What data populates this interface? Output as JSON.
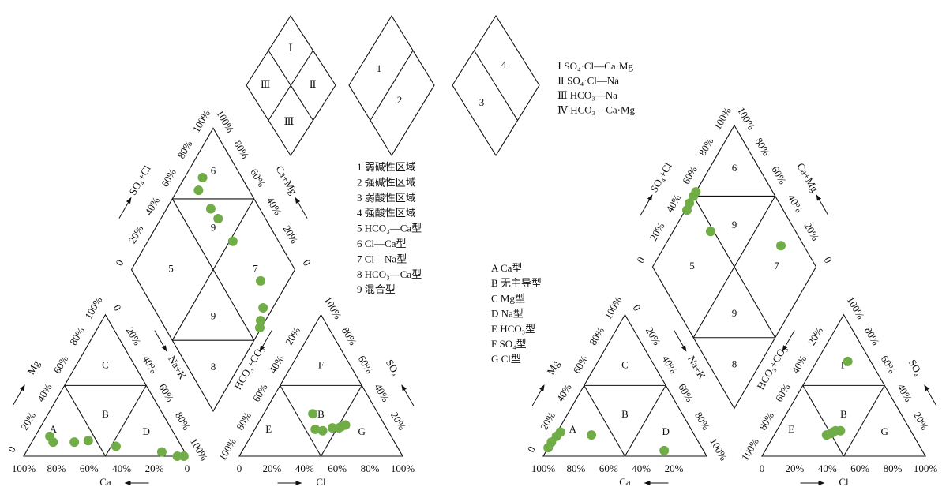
{
  "key_diamonds": [
    {
      "labels": [
        "Ⅰ",
        "Ⅲ",
        "Ⅱ",
        "Ⅲ"
      ]
    },
    {
      "labels": [
        "1",
        "2"
      ]
    },
    {
      "labels": [
        "4",
        "3"
      ]
    }
  ],
  "type_legend": [
    "Ⅰ SO₄·Cl—Ca·Mg",
    "Ⅱ SO₄·Cl—Na",
    "Ⅲ HCO₃—Na",
    "Ⅳ HCO₃—Ca·Mg"
  ],
  "zone_legend": [
    "1 弱碱性区域",
    "2 强碱性区域",
    "3 弱酸性区域",
    "4 强酸性区域",
    "5 HCO₃—Ca型",
    "6 Cl—Ca型",
    "7 Cl—Na型",
    "8 HCO₃—Ca型",
    "9 混合型"
  ],
  "class_legend": [
    "A Ca型",
    "B 无主导型",
    "C Mg型",
    "D Na型",
    "E HCO₃型",
    "F SO₄型",
    "G Cl型"
  ],
  "piper": [
    {
      "point_color": "#70ad47",
      "cation": {
        "zones": [
          "A",
          "B",
          "C",
          "D"
        ],
        "axes": {
          "ca": {
            "title": "Ca",
            "ticks": [
              {
                "value": 100,
                "label": "100%"
              },
              {
                "value": 80,
                "label": "80%"
              },
              {
                "value": 60,
                "label": "60%"
              },
              {
                "value": 40,
                "label": "40%"
              },
              {
                "value": 20,
                "label": "20%"
              },
              0
            ]
          },
          "mg": {
            "title": "Mg",
            "ticks": [
              0,
              {
                "value": 20,
                "label": "20%"
              },
              {
                "value": 40,
                "label": "40%"
              },
              {
                "value": 60,
                "label": "60%"
              },
              {
                "value": 80,
                "label": "80%"
              },
              {
                "value": 100,
                "label": "100%"
              }
            ]
          },
          "na": {
            "title": "Na+K",
            "ticks": [
              0,
              {
                "value": 20,
                "label": "20%"
              },
              {
                "value": 40,
                "label": "40%"
              },
              {
                "value": 60,
                "label": "60%"
              },
              {
                "value": 80,
                "label": "80%"
              },
              {
                "value": 100,
                "label": "100%"
              }
            ]
          }
        },
        "points": {
          "ca": [
            77,
            77,
            64,
            55,
            40,
            14,
            6,
            2
          ],
          "mg": [
            14,
            10,
            10,
            11,
            7,
            3,
            0,
            0
          ]
        }
      },
      "anion": {
        "zones": [
          "E",
          "B",
          "F",
          "G"
        ],
        "axes": {
          "cl": {
            "title": "Cl",
            "ticks": [
              0,
              {
                "value": 20,
                "label": "20%"
              },
              {
                "value": 40,
                "label": "40%"
              },
              {
                "value": 60,
                "label": "60%"
              },
              {
                "value": 80,
                "label": "80%"
              },
              {
                "value": 100,
                "label": "100%"
              }
            ]
          },
          "hco3": {
            "title": "HCO₃+CO₃",
            "ticks": [
              {
                "value": 20,
                "label": "20%"
              },
              {
                "value": 40,
                "label": "40%"
              },
              {
                "value": 60,
                "label": "60%"
              },
              {
                "value": 80,
                "label": "80%"
              },
              {
                "value": 100,
                "label": "100%"
              }
            ]
          },
          "so4": {
            "title": "SO₄",
            "ticks": [
              {
                "value": 20,
                "label": "20%"
              },
              {
                "value": 40,
                "label": "40%"
              },
              {
                "value": 60,
                "label": "60%"
              },
              {
                "value": 80,
                "label": "80%"
              },
              {
                "value": 100,
                "label": "100%"
              }
            ]
          }
        },
        "points": {
          "cl": [
            30,
            37,
            42,
            47,
            51,
            52,
            54
          ],
          "so4": [
            30,
            19,
            18,
            20,
            20,
            21,
            22
          ]
        }
      },
      "diamond": {
        "zones": [
          "6",
          "9",
          "5",
          "7",
          "9",
          "8"
        ],
        "axes": {
          "so4cl": {
            "title": "SO₄+Cl",
            "ticks": [
              0,
              {
                "value": 20,
                "label": "20%"
              },
              {
                "value": 40,
                "label": "40%"
              },
              {
                "value": 60,
                "label": "60%"
              },
              {
                "value": 80,
                "label": "80%"
              },
              {
                "value": 100,
                "label": "100%"
              }
            ]
          },
          "camg": {
            "title": "Ca+Mg",
            "ticks": [
              0,
              {
                "value": 20,
                "label": "20%"
              },
              {
                "value": 40,
                "label": "40%"
              },
              {
                "value": 60,
                "label": "60%"
              },
              {
                "value": 80,
                "label": "80%"
              },
              {
                "value": 100,
                "label": "100%"
              }
            ]
          }
        },
        "points": {
          "camg": [
            89,
            87,
            73,
            65,
            48,
            17,
            6,
            3,
            1
          ],
          "so4cl": [
            76,
            69,
            70,
            71,
            72,
            75,
            67,
            61,
            58
          ]
        }
      }
    },
    {
      "point_color": "#70ad47",
      "cation": {
        "zones": [
          "A",
          "B",
          "C",
          "D"
        ],
        "axes": {
          "ca": {
            "title": "Ca",
            "ticks": [
              {
                "value": 100,
                "label": "100%"
              },
              {
                "value": 80,
                "label": "80%"
              },
              {
                "value": 60,
                "label": "60%"
              },
              {
                "value": 40,
                "label": "40%"
              },
              {
                "value": 20,
                "label": "20%"
              }
            ]
          },
          "mg": {
            "title": "Mg",
            "ticks": [
              0,
              {
                "value": 20,
                "label": "20%"
              },
              {
                "value": 40,
                "label": "40%"
              },
              {
                "value": 60,
                "label": "60%"
              },
              {
                "value": 80,
                "label": "80%"
              },
              {
                "value": 100,
                "label": "100%"
              }
            ]
          },
          "na": {
            "title": "Na+K",
            "ticks": [
              0,
              {
                "value": 20,
                "label": "20%"
              },
              {
                "value": 40,
                "label": "40%"
              },
              {
                "value": 60,
                "label": "60%"
              },
              {
                "value": 80,
                "label": "80%"
              },
              {
                "value": 100,
                "label": "100%"
              }
            ]
          }
        },
        "points": {
          "ca": [
            94,
            90,
            85,
            81,
            63,
            24
          ],
          "mg": [
            6,
            10,
            14,
            17,
            15,
            4
          ]
        }
      },
      "anion": {
        "zones": [
          "E",
          "B",
          "F",
          "G"
        ],
        "axes": {
          "cl": {
            "title": "Cl",
            "ticks": [
              0,
              {
                "value": 20,
                "label": "20%"
              },
              {
                "value": 40,
                "label": "40%"
              },
              {
                "value": 60,
                "label": "60%"
              },
              {
                "value": 80,
                "label": "80%"
              },
              {
                "value": 100,
                "label": "100%"
              }
            ]
          },
          "hco3": {
            "title": "HCO₃+CO₃",
            "ticks": [
              {
                "value": 20,
                "label": "20%"
              },
              {
                "value": 40,
                "label": "40%"
              },
              {
                "value": 60,
                "label": "60%"
              },
              {
                "value": 80,
                "label": "80%"
              },
              {
                "value": 100,
                "label": "100%"
              }
            ]
          },
          "so4": {
            "title": "SO₄",
            "ticks": [
              {
                "value": 20,
                "label": "20%"
              },
              {
                "value": 40,
                "label": "40%"
              },
              {
                "value": 60,
                "label": "60%"
              },
              {
                "value": 80,
                "label": "80%"
              },
              {
                "value": 100,
                "label": "100%"
              }
            ]
          }
        },
        "points": {
          "cl": [
            19,
            32,
            34,
            35,
            39,
            36
          ],
          "so4": [
            67,
            15,
            16,
            17,
            18,
            18
          ]
        }
      },
      "diamond": {
        "zones": [
          "6",
          "9",
          "5",
          "7",
          "9",
          "8"
        ],
        "axes": {
          "so4cl": {
            "title": "SO₄+Cl",
            "ticks": [
              0,
              {
                "value": 20,
                "label": "20%"
              },
              {
                "value": 40,
                "label": "40%"
              },
              {
                "value": 60,
                "label": "60%"
              },
              {
                "value": 80,
                "label": "80%"
              },
              {
                "value": 100,
                "label": "100%"
              }
            ]
          },
          "camg": {
            "title": "Ca+Mg",
            "ticks": [
              0,
              {
                "value": 20,
                "label": "20%"
              },
              {
                "value": 40,
                "label": "40%"
              },
              {
                "value": 60,
                "label": "60%"
              },
              {
                "value": 80,
                "label": "80%"
              },
              {
                "value": 100,
                "label": "100%"
              }
            ]
          }
        },
        "points": {
          "camg": [
            99,
            100,
            100,
            100,
            77,
            29
          ],
          "so4cl": [
            41,
            45,
            50,
            53,
            48,
            86
          ]
        }
      }
    }
  ]
}
